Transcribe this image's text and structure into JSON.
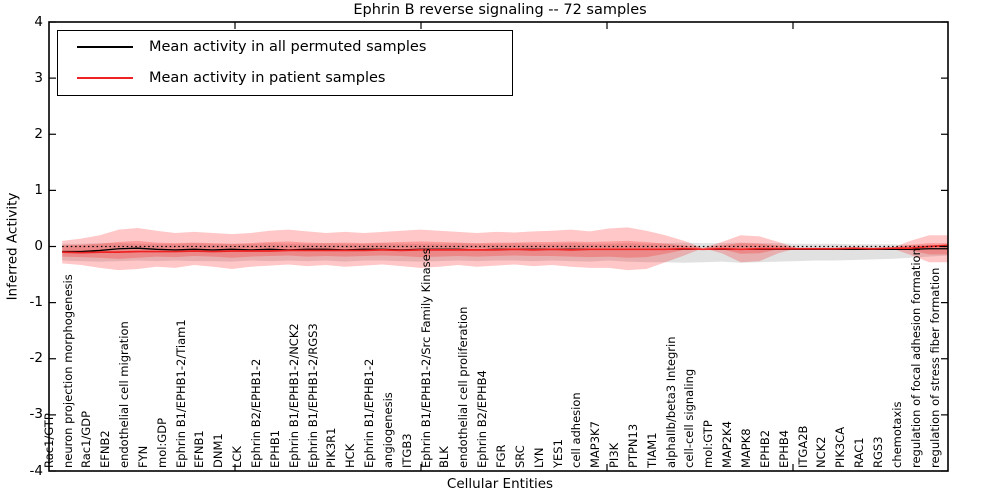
{
  "chart_data": {
    "type": "line",
    "title": "Ephrin B reverse signaling -- 72 samples",
    "xlabel": "Cellular Entities",
    "ylabel": "Inferred Activity",
    "ylim": [
      -4,
      4
    ],
    "yticks": [
      "4",
      "3",
      "2",
      "1",
      "0",
      "-1",
      "-2",
      "-3",
      "-4"
    ],
    "grid": false,
    "legend_position": "upper left",
    "categories": [
      "Rac1/GTP",
      "neuron projection morphogenesis",
      "Rac1/GDP",
      "EFNB2",
      "endothelial cell migration",
      "FYN",
      "mol:GDP",
      "Ephrin B1/EPHB1-2/Tiam1",
      "EFNB1",
      "DNM1",
      "LCK",
      "Ephrin B2/EPHB1-2",
      "EPHB1",
      "Ephrin B1/EPHB1-2/NCK2",
      "Ephrin B1/EPHB1-2/RGS3",
      "PIK3R1",
      "HCK",
      "Ephrin B1/EPHB1-2",
      "angiogenesis",
      "ITGB3",
      "Ephrin B1/EPHB1-2/Src Family Kinases",
      "BLK",
      "endothelial cell proliferation",
      "Ephrin B2/EPHB4",
      "FGR",
      "SRC",
      "LYN",
      "YES1",
      "cell adhesion",
      "MAP3K7",
      "PI3K",
      "PTPN13",
      "TIAM1",
      "alphaIIb/beta3 Integrin",
      "cell-cell signaling",
      "mol:GTP",
      "MAP2K4",
      "MAPK8",
      "EPHB2",
      "EPHB4",
      "ITGA2B",
      "NCK2",
      "PIK3CA",
      "RAC1",
      "RGS3",
      "chemotaxis",
      "regulation of focal adhesion formation",
      "regulation of stress fiber formation"
    ],
    "series": [
      {
        "name": "Mean activity in all permuted samples",
        "color": "#000000",
        "style": "solid",
        "values": [
          -0.09,
          -0.09,
          -0.07,
          -0.04,
          -0.03,
          -0.05,
          -0.06,
          -0.05,
          -0.06,
          -0.05,
          -0.06,
          -0.05,
          -0.06,
          -0.05,
          -0.05,
          -0.06,
          -0.05,
          -0.05,
          -0.06,
          -0.05,
          -0.05,
          -0.05,
          -0.06,
          -0.05,
          -0.05,
          -0.05,
          -0.05,
          -0.05,
          -0.05,
          -0.05,
          -0.05,
          -0.05,
          -0.05,
          -0.05,
          -0.05,
          -0.05,
          -0.05,
          -0.05,
          -0.05,
          -0.05,
          -0.05,
          -0.05,
          -0.05,
          -0.05,
          -0.05,
          -0.05,
          -0.04,
          -0.04
        ]
      },
      {
        "name": "Mean activity in patient samples",
        "color": "#ee2222",
        "style": "solid",
        "values": [
          -0.1,
          -0.11,
          -0.1,
          -0.1,
          -0.09,
          -0.09,
          -0.09,
          -0.08,
          -0.09,
          -0.08,
          -0.08,
          -0.08,
          -0.07,
          -0.07,
          -0.07,
          -0.07,
          -0.07,
          -0.06,
          -0.07,
          -0.06,
          -0.06,
          -0.06,
          -0.06,
          -0.06,
          -0.05,
          -0.06,
          -0.05,
          -0.06,
          -0.05,
          -0.05,
          -0.05,
          -0.05,
          -0.05,
          -0.04,
          -0.05,
          -0.04,
          -0.05,
          -0.04,
          -0.04,
          -0.04,
          -0.04,
          -0.04,
          -0.03,
          -0.04,
          -0.03,
          -0.03,
          0.0,
          0.02
        ]
      }
    ],
    "baseline": {
      "value": 0.0,
      "style": "dotted",
      "color": "#000000"
    },
    "bands": [
      {
        "name": "permuted-activity-range",
        "color": "rgba(128,128,128,0.24)",
        "upper": [
          0.05,
          0.05,
          0.06,
          0.06,
          0.05,
          0.05,
          0.05,
          0.06,
          0.05,
          0.05,
          0.05,
          0.06,
          0.05,
          0.05,
          0.06,
          0.05,
          0.05,
          0.06,
          0.05,
          0.05,
          0.05,
          0.06,
          0.05,
          0.05,
          0.06,
          0.05,
          0.05,
          0.06,
          0.05,
          0.05,
          0.06,
          0.05,
          0.06,
          0.07,
          0.06,
          0.06,
          0.07,
          0.06,
          0.06,
          0.05,
          0.05,
          0.05,
          0.04,
          0.04,
          0.04,
          0.03,
          0.03,
          0.03
        ],
        "lower": [
          -0.25,
          -0.26,
          -0.27,
          -0.26,
          -0.25,
          -0.26,
          -0.25,
          -0.26,
          -0.26,
          -0.27,
          -0.25,
          -0.26,
          -0.25,
          -0.26,
          -0.25,
          -0.27,
          -0.25,
          -0.25,
          -0.26,
          -0.27,
          -0.26,
          -0.25,
          -0.26,
          -0.25,
          -0.25,
          -0.26,
          -0.25,
          -0.26,
          -0.27,
          -0.25,
          -0.27,
          -0.28,
          -0.28,
          -0.29,
          -0.28,
          -0.27,
          -0.29,
          -0.28,
          -0.27,
          -0.26,
          -0.25,
          -0.25,
          -0.24,
          -0.23,
          -0.22,
          -0.2,
          -0.18,
          -0.16
        ]
      },
      {
        "name": "patient-activity-range-outer",
        "color": "rgba(255,0,0,0.22)",
        "upper": [
          0.1,
          0.14,
          0.2,
          0.3,
          0.33,
          0.28,
          0.24,
          0.26,
          0.24,
          0.22,
          0.24,
          0.28,
          0.3,
          0.27,
          0.24,
          0.26,
          0.24,
          0.26,
          0.28,
          0.3,
          0.28,
          0.26,
          0.24,
          0.26,
          0.25,
          0.27,
          0.28,
          0.3,
          0.27,
          0.32,
          0.34,
          0.28,
          0.2,
          0.1,
          -0.03,
          0.08,
          0.2,
          0.18,
          0.08,
          -0.03,
          -0.03,
          -0.03,
          -0.03,
          -0.03,
          -0.03,
          0.1,
          0.2,
          0.2
        ],
        "lower": [
          -0.3,
          -0.33,
          -0.38,
          -0.42,
          -0.4,
          -0.36,
          -0.38,
          -0.33,
          -0.36,
          -0.4,
          -0.36,
          -0.34,
          -0.32,
          -0.35,
          -0.33,
          -0.36,
          -0.34,
          -0.32,
          -0.35,
          -0.38,
          -0.36,
          -0.33,
          -0.36,
          -0.34,
          -0.32,
          -0.35,
          -0.33,
          -0.36,
          -0.38,
          -0.38,
          -0.42,
          -0.4,
          -0.28,
          -0.16,
          -0.03,
          -0.12,
          -0.28,
          -0.26,
          -0.12,
          -0.03,
          -0.03,
          -0.03,
          -0.03,
          -0.03,
          -0.03,
          -0.15,
          -0.28,
          -0.28
        ]
      },
      {
        "name": "patient-activity-range-inner",
        "color": "rgba(255,0,0,0.22)",
        "upper": [
          0.02,
          0.03,
          0.05,
          0.08,
          0.1,
          0.07,
          0.06,
          0.07,
          0.06,
          0.05,
          0.06,
          0.08,
          0.09,
          0.07,
          0.06,
          0.07,
          0.06,
          0.07,
          0.08,
          0.09,
          0.08,
          0.07,
          0.06,
          0.07,
          0.07,
          0.08,
          0.08,
          0.09,
          0.08,
          0.09,
          0.1,
          0.08,
          0.05,
          0.02,
          -0.03,
          0.02,
          0.06,
          0.05,
          0.02,
          -0.03,
          -0.03,
          -0.03,
          -0.03,
          -0.03,
          -0.03,
          0.03,
          0.06,
          0.06
        ],
        "lower": [
          -0.18,
          -0.19,
          -0.2,
          -0.22,
          -0.2,
          -0.18,
          -0.19,
          -0.17,
          -0.18,
          -0.2,
          -0.18,
          -0.17,
          -0.16,
          -0.18,
          -0.17,
          -0.18,
          -0.17,
          -0.16,
          -0.17,
          -0.19,
          -0.18,
          -0.17,
          -0.18,
          -0.17,
          -0.16,
          -0.17,
          -0.17,
          -0.18,
          -0.19,
          -0.18,
          -0.2,
          -0.19,
          -0.13,
          -0.06,
          -0.03,
          -0.05,
          -0.13,
          -0.12,
          -0.05,
          -0.03,
          -0.03,
          -0.03,
          -0.03,
          -0.03,
          -0.03,
          -0.07,
          -0.14,
          -0.14
        ]
      }
    ],
    "colors": {
      "permuted_line": "#000000",
      "patient_line": "#ee2222",
      "axis": "#000000",
      "background": "#ffffff"
    }
  }
}
